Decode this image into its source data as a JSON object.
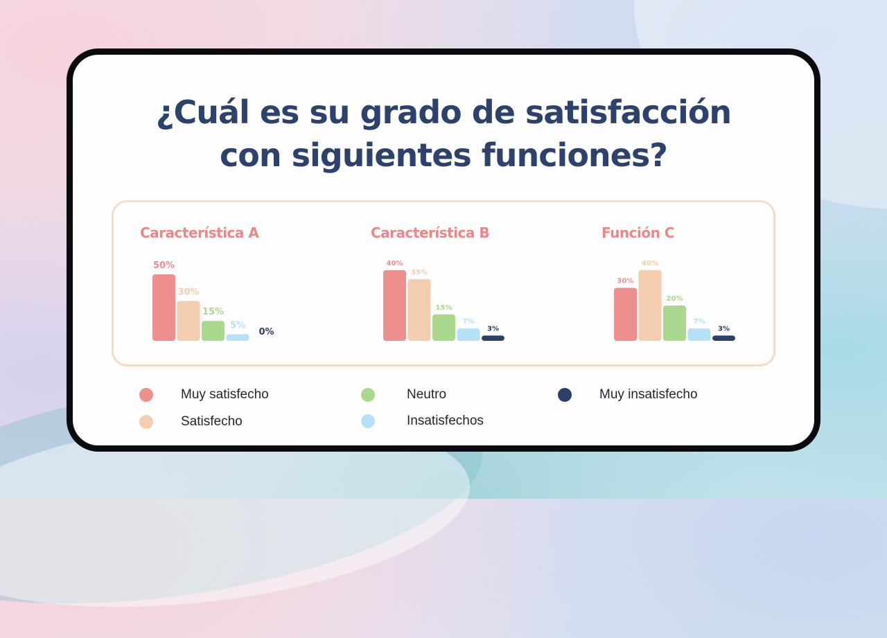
{
  "title": {
    "line1": "¿Cuál es su grado de satisfacción",
    "line2": "con siguientes funciones?"
  },
  "colors": {
    "muy_satisfecho": "#ee8f8f",
    "satisfecho": "#f2cdb0",
    "neutro": "#a9d88e",
    "insatisfechos": "#b6e0f5",
    "muy_insatisfecho": "#2c3f69",
    "title": "#2c416b",
    "chart_title": "#e9888a"
  },
  "legend": [
    {
      "label": "Muy satisfecho",
      "color": "#ee8f8f"
    },
    {
      "label": "Satisfecho",
      "color": "#f2cdb0"
    },
    {
      "label": "Neutro",
      "color": "#a9d88e"
    },
    {
      "label": "Insatisfechos",
      "color": "#b6e0f5"
    },
    {
      "label": "Muy insatisfecho",
      "color": "#2c3f69"
    }
  ],
  "chart_data": [
    {
      "type": "bar",
      "title": "Característica A",
      "categories": [
        "Muy satisfecho",
        "Satisfecho",
        "Neutro",
        "Insatisfechos",
        "Muy insatisfecho"
      ],
      "values": [
        50,
        30,
        15,
        5,
        0
      ],
      "labels": [
        "50%",
        "30%",
        "15%",
        "5%",
        "0%"
      ],
      "ylim": [
        0,
        50
      ]
    },
    {
      "type": "bar",
      "title": "Característica B",
      "categories": [
        "Muy satisfecho",
        "Satisfecho",
        "Neutro",
        "Insatisfechos",
        "Muy insatisfecho"
      ],
      "values": [
        40,
        35,
        15,
        7,
        3
      ],
      "labels": [
        "40%",
        "35%",
        "15%",
        "7%",
        "3%"
      ],
      "ylim": [
        0,
        40
      ]
    },
    {
      "type": "bar",
      "title": "Función C",
      "categories": [
        "Muy satisfecho",
        "Satisfecho",
        "Neutro",
        "Insatisfechos",
        "Muy insatisfecho"
      ],
      "values": [
        30,
        40,
        20,
        7,
        3
      ],
      "labels": [
        "30%",
        "40%",
        "20%",
        "7%",
        "3%"
      ],
      "ylim": [
        0,
        40
      ]
    }
  ]
}
